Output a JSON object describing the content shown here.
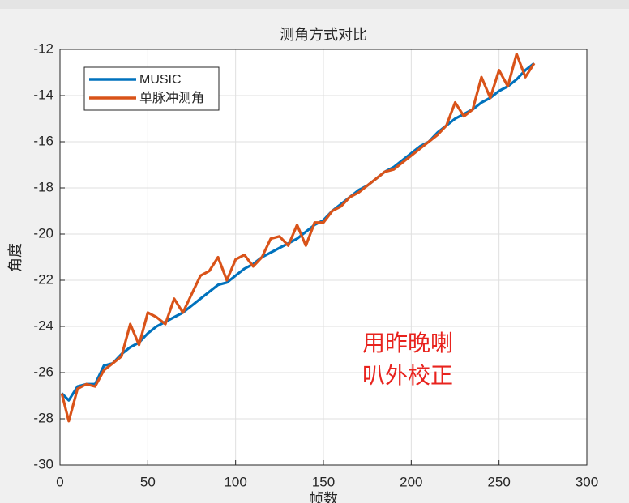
{
  "chart_data": {
    "type": "line",
    "title": "测角方式对比",
    "xlabel": "帧数",
    "ylabel": "角度",
    "annotation": [
      "用昨晚喇",
      "叭外校正"
    ],
    "x": [
      1,
      5,
      10,
      15,
      20,
      25,
      30,
      35,
      40,
      45,
      50,
      55,
      60,
      65,
      70,
      75,
      80,
      85,
      90,
      95,
      100,
      105,
      110,
      115,
      120,
      125,
      130,
      135,
      140,
      145,
      150,
      155,
      160,
      165,
      170,
      175,
      180,
      185,
      190,
      195,
      200,
      205,
      210,
      215,
      220,
      225,
      230,
      235,
      240,
      245,
      250,
      255,
      260,
      265,
      270
    ],
    "series": [
      {
        "name": "MUSIC",
        "color": "#0072bd",
        "values": [
          -26.9,
          -27.2,
          -26.6,
          -26.5,
          -26.5,
          -25.7,
          -25.6,
          -25.2,
          -24.9,
          -24.7,
          -24.3,
          -24.0,
          -23.8,
          -23.6,
          -23.4,
          -23.1,
          -22.8,
          -22.5,
          -22.2,
          -22.1,
          -21.8,
          -21.5,
          -21.3,
          -21.0,
          -20.8,
          -20.6,
          -20.4,
          -20.2,
          -19.9,
          -19.6,
          -19.4,
          -19.0,
          -18.7,
          -18.4,
          -18.1,
          -17.9,
          -17.6,
          -17.3,
          -17.1,
          -16.8,
          -16.5,
          -16.2,
          -16.0,
          -15.6,
          -15.3,
          -15.0,
          -14.8,
          -14.6,
          -14.3,
          -14.1,
          -13.8,
          -13.6,
          -13.3,
          -12.9,
          -12.6
        ]
      },
      {
        "name": "单脉冲测角",
        "color": "#d95319",
        "values": [
          -26.9,
          -28.1,
          -26.7,
          -26.5,
          -26.6,
          -25.9,
          -25.6,
          -25.3,
          -23.9,
          -24.8,
          -23.4,
          -23.6,
          -23.9,
          -22.8,
          -23.4,
          -22.6,
          -21.8,
          -21.6,
          -21.0,
          -22.0,
          -21.1,
          -20.9,
          -21.4,
          -21.0,
          -20.2,
          -20.1,
          -20.5,
          -19.6,
          -20.5,
          -19.5,
          -19.5,
          -19.0,
          -18.8,
          -18.4,
          -18.2,
          -17.9,
          -17.6,
          -17.3,
          -17.2,
          -16.9,
          -16.6,
          -16.3,
          -16.0,
          -15.7,
          -15.3,
          -14.3,
          -14.9,
          -14.6,
          -13.2,
          -14.1,
          -12.9,
          -13.6,
          -12.2,
          -13.2,
          -12.6
        ]
      }
    ],
    "xlim": [
      0,
      300
    ],
    "xticks": [
      0,
      50,
      100,
      150,
      200,
      250,
      300
    ],
    "ylim": [
      -30,
      -12
    ],
    "yticks": [
      -30,
      -28,
      -26,
      -24,
      -22,
      -20,
      -18,
      -16,
      -14,
      -12
    ],
    "grid": true,
    "legend": "top-left"
  }
}
